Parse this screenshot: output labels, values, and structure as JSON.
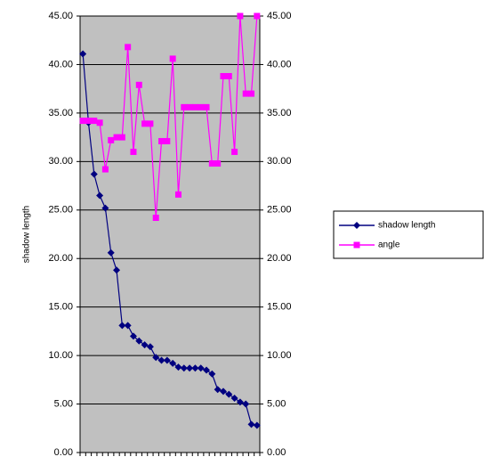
{
  "chart_data": {
    "type": "line",
    "y_label": "shadow length",
    "categories": [
      null,
      null,
      null,
      null,
      null,
      null,
      null,
      null,
      null,
      null,
      null,
      null,
      null,
      null,
      null,
      null,
      null,
      null,
      null,
      null,
      null,
      null,
      null,
      null,
      null,
      null,
      null,
      null,
      null,
      null,
      null,
      null
    ],
    "series": [
      {
        "name": "shadow length",
        "color": "#000080",
        "marker": "diamond",
        "axis": "y",
        "values": [
          41.1,
          34.0,
          28.7,
          26.5,
          25.2,
          20.6,
          18.8,
          13.1,
          13.1,
          12.0,
          11.5,
          11.1,
          10.9,
          9.8,
          9.5,
          9.5,
          9.2,
          8.8,
          8.7,
          8.7,
          8.7,
          8.7,
          8.5,
          8.1,
          6.5,
          6.3,
          6.0,
          5.6,
          5.2,
          5.0,
          2.9,
          2.8
        ]
      },
      {
        "name": "angle",
        "color": "#ff00ff",
        "marker": "square",
        "axis": "y2",
        "values": [
          34.2,
          34.2,
          34.2,
          34.0,
          29.2,
          32.2,
          32.5,
          32.5,
          41.8,
          31.0,
          37.9,
          33.9,
          33.9,
          24.2,
          32.1,
          32.1,
          40.6,
          26.6,
          35.6,
          35.6,
          35.6,
          35.6,
          35.6,
          29.8,
          29.8,
          38.8,
          38.8,
          31.0,
          45.0,
          37.0,
          37.0,
          45.0
        ]
      }
    ],
    "ylim": [
      0,
      45
    ],
    "yticks": [
      {
        "value": 0,
        "label": "0.00"
      },
      {
        "value": 5,
        "label": "5.00"
      },
      {
        "value": 10,
        "label": "10.00"
      },
      {
        "value": 15,
        "label": "15.00"
      },
      {
        "value": 20,
        "label": "20.00"
      },
      {
        "value": 25,
        "label": "25.00"
      },
      {
        "value": 30,
        "label": "30.00"
      },
      {
        "value": 35,
        "label": "35.00"
      },
      {
        "value": 40,
        "label": "40.00"
      },
      {
        "value": 45,
        "label": "45.00"
      }
    ],
    "y2lim": [
      0,
      45
    ],
    "y2ticks": [
      {
        "value": 0,
        "label": "0.00"
      },
      {
        "value": 5,
        "label": "5.00"
      },
      {
        "value": 10,
        "label": "10.00"
      },
      {
        "value": 15,
        "label": "15.00"
      },
      {
        "value": 20,
        "label": "20.00"
      },
      {
        "value": 25,
        "label": "25.00"
      },
      {
        "value": 30,
        "label": "30.00"
      },
      {
        "value": 35,
        "label": "35.00"
      },
      {
        "value": 40,
        "label": "40.00"
      },
      {
        "value": 45,
        "label": "45.00"
      }
    ],
    "grid": true,
    "plot_background": "#c0c0c0",
    "legend": "right"
  }
}
